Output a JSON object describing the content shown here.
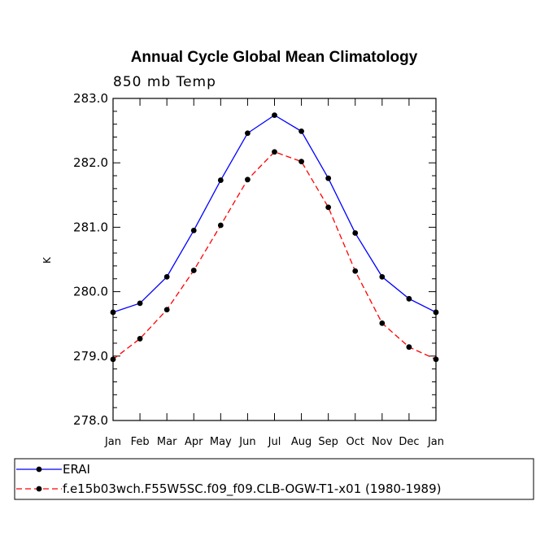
{
  "chart_data": {
    "type": "line",
    "title": "Annual Cycle Global Mean Climatology",
    "subtitle": "850 mb Temp",
    "xlabel": "",
    "ylabel": "K",
    "categories": [
      "Jan",
      "Feb",
      "Mar",
      "Apr",
      "May",
      "Jun",
      "Jul",
      "Aug",
      "Sep",
      "Oct",
      "Nov",
      "Dec",
      "Jan"
    ],
    "ylim": [
      278.0,
      283.0
    ],
    "yticks": [
      "278.0",
      "279.0",
      "280.0",
      "281.0",
      "282.0",
      "283.0"
    ],
    "grid": false,
    "legend_position": "bottom-left",
    "series": [
      {
        "name": "ERAI",
        "color": "#0000ff",
        "dash": "solid",
        "values": [
          279.68,
          279.82,
          280.23,
          280.95,
          281.73,
          282.46,
          282.74,
          282.49,
          281.76,
          280.91,
          280.23,
          279.89,
          279.68
        ]
      },
      {
        "name": "f.e15b03wch.F55W5SC.f09_f09.CLB-OGW-T1-x01 (1980-1989)",
        "color": "#ff0000",
        "dash": "dashed",
        "values": [
          278.95,
          279.27,
          279.72,
          280.33,
          281.03,
          281.74,
          282.17,
          282.02,
          281.31,
          280.32,
          279.51,
          279.14,
          278.95
        ]
      }
    ]
  }
}
